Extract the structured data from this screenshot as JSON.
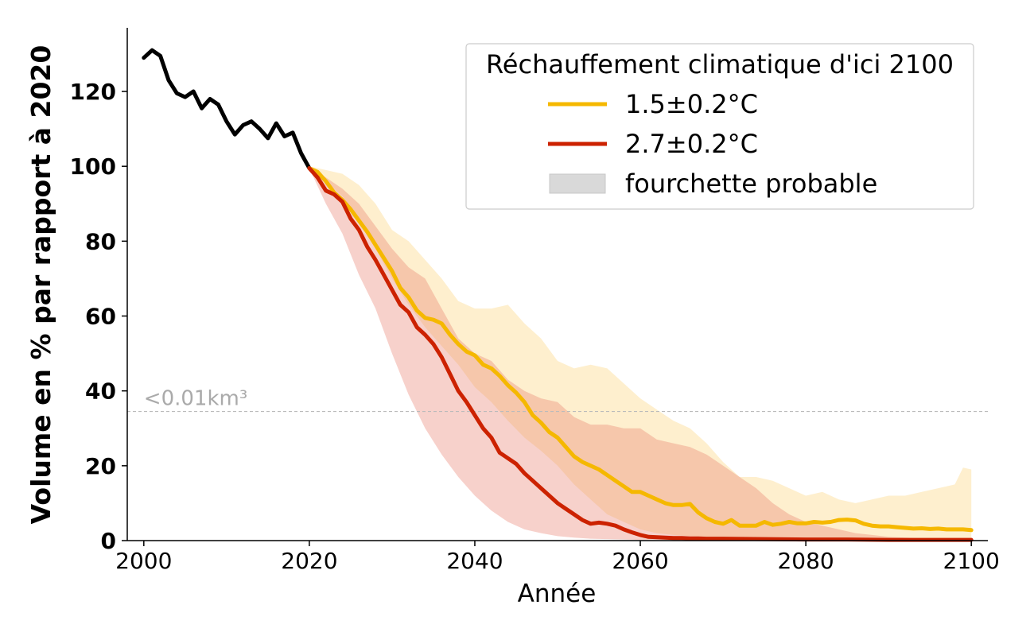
{
  "chart_data": {
    "type": "line",
    "xlabel": "Année",
    "ylabel": "Volume en % par rapport à 2020",
    "xlim": [
      1998,
      2102
    ],
    "ylim": [
      0,
      137
    ],
    "xticks": [
      2000,
      2020,
      2040,
      2060,
      2080,
      2100
    ],
    "yticks": [
      0,
      20,
      40,
      60,
      80,
      100,
      120
    ],
    "grid": false,
    "legend": {
      "title": "Réchauffement climatique d'ici 2100",
      "placement": "top-right",
      "entries": [
        "1.5±0.2°C",
        "2.7±0.2°C",
        "fourchette probable"
      ]
    },
    "reference_line": {
      "y": 34.5,
      "label": "<0.01km³",
      "color": "#bbbbbb"
    },
    "colors": {
      "historical": "#000000",
      "low": "#f5b800",
      "low_band": "#fde9b0",
      "high": "#cc2200",
      "high_band": "#f2b8b0",
      "overlap_band": "#f5c6a0",
      "legend_band": "#d9d9d9"
    },
    "series": [
      {
        "role": "historical",
        "x": [
          2000,
          2001,
          2002,
          2003,
          2004,
          2005,
          2006,
          2007,
          2008,
          2009,
          2010,
          2011,
          2012,
          2013,
          2014,
          2015,
          2016,
          2017,
          2018,
          2019,
          2020
        ],
        "y": [
          129,
          131,
          129.5,
          123,
          119.5,
          118.5,
          120,
          115.5,
          118,
          116.5,
          112,
          108.5,
          111,
          112,
          110,
          107.5,
          111.5,
          108,
          109,
          103.5,
          99.5
        ]
      },
      {
        "name": "1.5±0.2°C",
        "x": [
          2020,
          2021,
          2022,
          2023,
          2024,
          2025,
          2026,
          2027,
          2028,
          2029,
          2030,
          2031,
          2032,
          2033,
          2034,
          2035,
          2036,
          2037,
          2038,
          2039,
          2040,
          2041,
          2042,
          2043,
          2044,
          2045,
          2046,
          2047,
          2048,
          2049,
          2050,
          2051,
          2052,
          2053,
          2054,
          2055,
          2056,
          2057,
          2058,
          2059,
          2060,
          2061,
          2062,
          2063,
          2064,
          2065,
          2066,
          2067,
          2068,
          2069,
          2070,
          2071,
          2072,
          2073,
          2074,
          2075,
          2076,
          2077,
          2078,
          2079,
          2080,
          2081,
          2082,
          2083,
          2084,
          2085,
          2086,
          2087,
          2088,
          2089,
          2090,
          2091,
          2092,
          2093,
          2094,
          2095,
          2096,
          2097,
          2098,
          2099,
          2100
        ],
        "y": [
          99.5,
          98.5,
          96,
          93,
          91,
          88.5,
          85.5,
          82.5,
          79,
          75.5,
          72,
          67.5,
          65,
          61.5,
          59.5,
          59,
          58,
          55,
          52.5,
          50.5,
          49.5,
          47,
          46,
          44,
          41.5,
          39.5,
          37,
          33.5,
          31.5,
          29,
          27.5,
          25,
          22.5,
          21,
          20,
          19,
          17.5,
          16,
          14.5,
          13,
          13,
          12,
          11,
          10,
          9.5,
          9.5,
          9.8,
          7.5,
          6,
          5,
          4.5,
          5.5,
          4,
          4,
          4,
          5,
          4.2,
          4.5,
          5,
          4.6,
          4.6,
          5,
          4.8,
          5,
          5.5,
          5.6,
          5.4,
          4.5,
          4,
          3.8,
          3.8,
          3.6,
          3.4,
          3.2,
          3.3,
          3.1,
          3.2,
          3,
          3,
          3,
          2.8
        ]
      },
      {
        "name": "2.7±0.2°C",
        "x": [
          2020,
          2021,
          2022,
          2023,
          2024,
          2025,
          2026,
          2027,
          2028,
          2029,
          2030,
          2031,
          2032,
          2033,
          2034,
          2035,
          2036,
          2037,
          2038,
          2039,
          2040,
          2041,
          2042,
          2043,
          2044,
          2045,
          2046,
          2047,
          2048,
          2049,
          2050,
          2051,
          2052,
          2053,
          2054,
          2055,
          2056,
          2057,
          2058,
          2059,
          2060,
          2061,
          2062,
          2063,
          2064,
          2065,
          2066,
          2067,
          2068,
          2069,
          2070,
          2075,
          2080,
          2085,
          2090,
          2095,
          2100
        ],
        "y": [
          99.5,
          97,
          93.5,
          92.5,
          90.5,
          86,
          83,
          78.5,
          75,
          71,
          67,
          63,
          61,
          57,
          55,
          52.5,
          49,
          44.5,
          40,
          37,
          33.5,
          30,
          27.5,
          23.5,
          22,
          20.5,
          18,
          16,
          14,
          12,
          10,
          8.5,
          7,
          5.5,
          4.5,
          4.8,
          4.5,
          4,
          3,
          2.2,
          1.5,
          1,
          0.9,
          0.8,
          0.7,
          0.7,
          0.6,
          0.6,
          0.5,
          0.5,
          0.5,
          0.4,
          0.3,
          0.3,
          0.2,
          0.2,
          0.2
        ]
      }
    ],
    "bands": [
      {
        "name": "1.5±0.2°C fourchette probable",
        "x": [
          2020,
          2022,
          2024,
          2026,
          2028,
          2030,
          2032,
          2034,
          2036,
          2038,
          2040,
          2042,
          2044,
          2046,
          2048,
          2050,
          2052,
          2054,
          2056,
          2058,
          2060,
          2062,
          2064,
          2066,
          2068,
          2070,
          2072,
          2074,
          2076,
          2078,
          2080,
          2082,
          2084,
          2086,
          2088,
          2090,
          2092,
          2094,
          2096,
          2098,
          2099,
          2100
        ],
        "upper": [
          100,
          99,
          98,
          95,
          90,
          83,
          80,
          75,
          70,
          64,
          62,
          62,
          63,
          58,
          54,
          48,
          46,
          47,
          46,
          42,
          38,
          35,
          32,
          30,
          26,
          21,
          17,
          17,
          16,
          14,
          12,
          13,
          11,
          10,
          11,
          12,
          12,
          13,
          14,
          15,
          19.5,
          19
        ],
        "lower": [
          99.5,
          96,
          92,
          85,
          78,
          70,
          63,
          57,
          52,
          47,
          41,
          37,
          32,
          27.5,
          24,
          20,
          15,
          11,
          7,
          5,
          3,
          2,
          1.5,
          1.2,
          1,
          0.9,
          0.8,
          0.7,
          0.6,
          0.5,
          0.5,
          0.4,
          0.4,
          0.3,
          0.3,
          0.3,
          0.3,
          0.3,
          0.3,
          0.3,
          0.3,
          0.3
        ]
      },
      {
        "name": "2.7±0.2°C fourchette probable",
        "x": [
          2020,
          2022,
          2024,
          2026,
          2028,
          2030,
          2032,
          2034,
          2036,
          2038,
          2040,
          2042,
          2044,
          2046,
          2048,
          2050,
          2052,
          2054,
          2056,
          2058,
          2060,
          2062,
          2064,
          2066,
          2068,
          2070,
          2072,
          2074,
          2076,
          2078,
          2080,
          2082,
          2084,
          2086,
          2088,
          2090,
          2092,
          2094,
          2096,
          2098,
          2100
        ],
        "upper": [
          99.5,
          97,
          94,
          90,
          84,
          78,
          73,
          70,
          62,
          54,
          50,
          48,
          43,
          40,
          38,
          37,
          33,
          31,
          31,
          30,
          30,
          27,
          26,
          25,
          23,
          20,
          17,
          14,
          10,
          7,
          5,
          4,
          3,
          2,
          1.5,
          1,
          0.8,
          0.6,
          0.5,
          0.4,
          0.3
        ],
        "lower": [
          99.5,
          90,
          82,
          71,
          62,
          50,
          39,
          30,
          23,
          17,
          12,
          8,
          5,
          3,
          2,
          1.2,
          0.8,
          0.5,
          0.4,
          0.3,
          0.2,
          0.2,
          0.1,
          0.1,
          0.1,
          0.1,
          0.1,
          0.1,
          0.1,
          0.1,
          0.1,
          0.1,
          0.1,
          0.1,
          0.1,
          0.1,
          0.1,
          0.1,
          0.1,
          0.1,
          0.1
        ]
      }
    ]
  }
}
